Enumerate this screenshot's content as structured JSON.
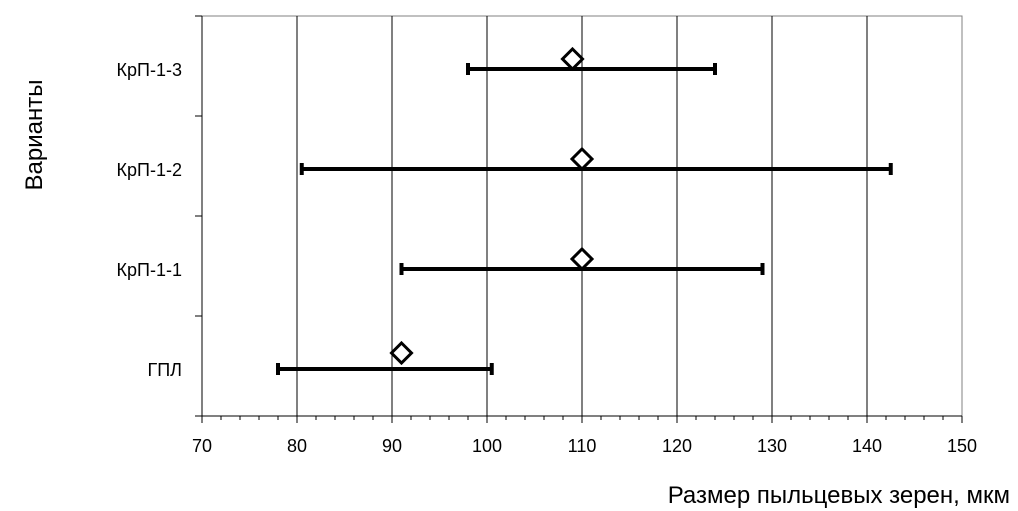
{
  "chart_data": {
    "type": "scatter",
    "title": "",
    "xlabel": "Размер пыльцевых зерен, мкм",
    "ylabel": "Варианты",
    "xlim": [
      70,
      150
    ],
    "x_ticks": [
      "70",
      "80",
      "90",
      "100",
      "110",
      "120",
      "130",
      "140",
      "150"
    ],
    "categories": [
      "КрП-1-3",
      "КрП-1-2",
      "КрП-1-1",
      "ГПЛ"
    ],
    "grid": "vertical",
    "legend": "none",
    "points": [
      {
        "category": "КрП-1-3",
        "value": 109,
        "range": [
          98,
          124
        ]
      },
      {
        "category": "КрП-1-2",
        "value": 110,
        "range": [
          80.5,
          142.5
        ]
      },
      {
        "category": "КрП-1-1",
        "value": 110,
        "range": [
          91,
          129
        ]
      },
      {
        "category": "ГПЛ",
        "value": 91,
        "range": [
          78,
          100.5
        ]
      }
    ]
  }
}
